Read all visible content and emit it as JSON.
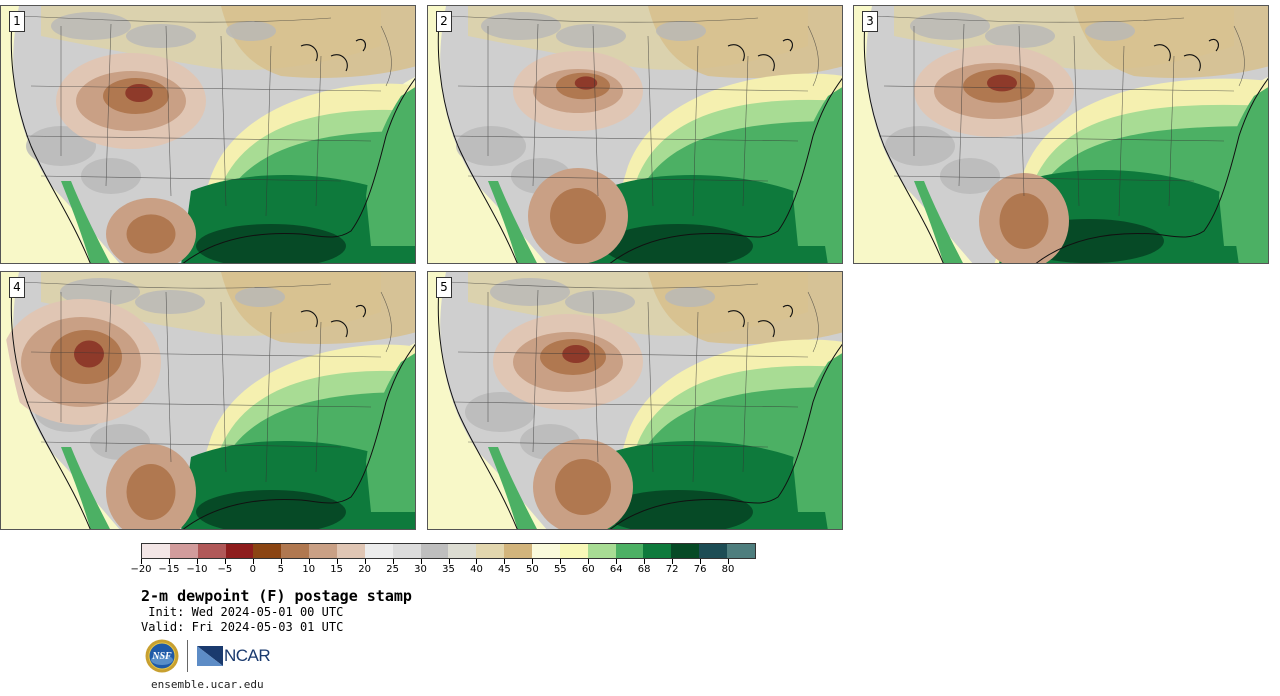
{
  "panels": [
    {
      "label": "1"
    },
    {
      "label": "2"
    },
    {
      "label": "3"
    },
    {
      "label": "4"
    },
    {
      "label": "5"
    }
  ],
  "colorbar": {
    "colors": [
      "#f3e6e6",
      "#d29c9c",
      "#b05858",
      "#8e1d1d",
      "#8b4513",
      "#b07850",
      "#c9a085",
      "#e0c6b4",
      "#ececec",
      "#dcdcdc",
      "#bebebe",
      "#dcdcd2",
      "#e2d6ae",
      "#d2b47c",
      "#fafadc",
      "#f8f8b8",
      "#a8dc94",
      "#4cb064",
      "#0e7a3c",
      "#064a26",
      "#1d4d55",
      "#4e7e7e"
    ],
    "tick_labels": [
      "−20",
      "−15",
      "−10",
      "−5",
      "0",
      "5",
      "10",
      "15",
      "20",
      "25",
      "30",
      "35",
      "40",
      "45",
      "50",
      "55",
      "60",
      "64",
      "68",
      "72",
      "76",
      "80"
    ]
  },
  "title": "2-m dewpoint (F) postage stamp",
  "init": " Init: Wed 2024-05-01 00 UTC",
  "valid": "Valid: Fri 2024-05-03 01 UTC",
  "logo": {
    "ncar_text": "NCAR",
    "nsf_text": "NSF"
  },
  "url": "ensemble.ucar.edu"
}
